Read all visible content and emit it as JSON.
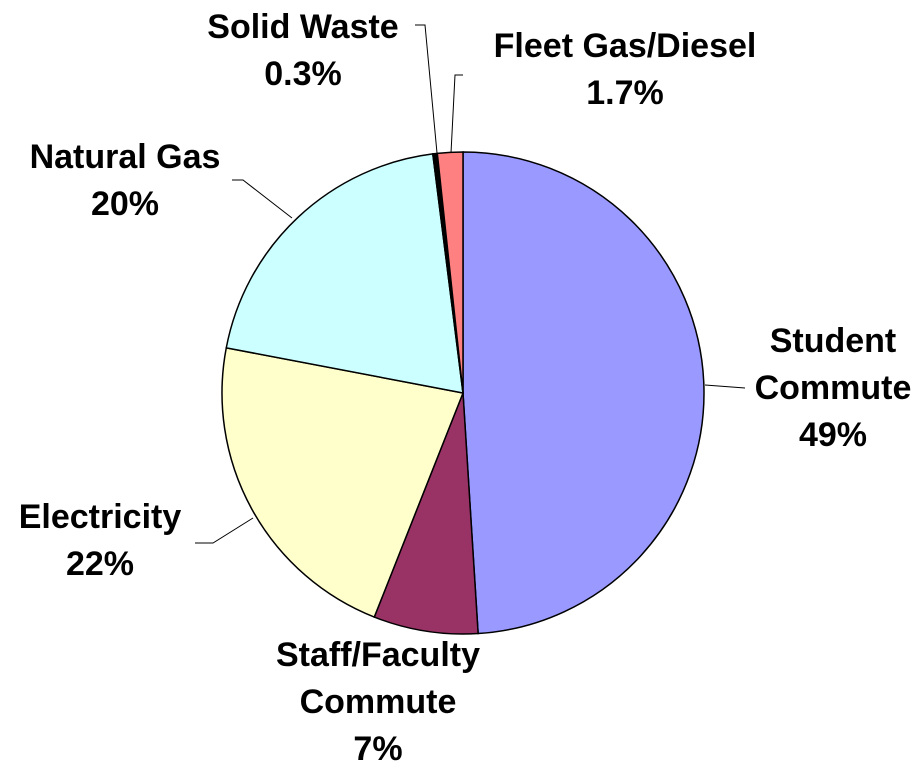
{
  "chart_data": {
    "type": "pie",
    "categories": [
      "Student Commute",
      "Staff/Faculty Commute",
      "Electricity",
      "Natural Gas",
      "Solid Waste",
      "Fleet Gas/Diesel"
    ],
    "values": [
      49,
      7,
      22,
      20,
      0.3,
      1.7
    ],
    "value_labels": [
      "49%",
      "7%",
      "22%",
      "20%",
      "0.3%",
      "1.7%"
    ],
    "colors": [
      "#9999ff",
      "#993366",
      "#ffffcc",
      "#ccffff",
      "#000000",
      "#ff8080"
    ]
  }
}
